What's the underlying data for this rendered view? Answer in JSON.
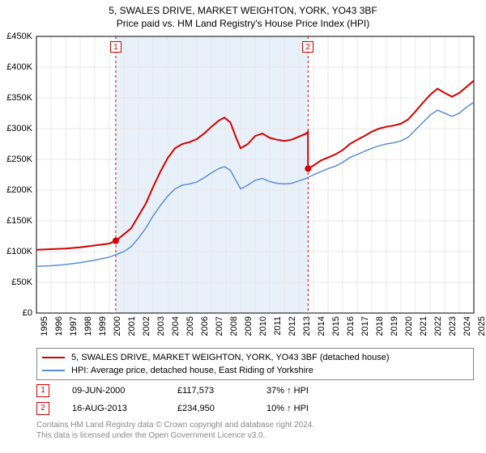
{
  "title_line1": "5, SWALES DRIVE, MARKET WEIGHTON, YORK, YO43 3BF",
  "title_line2": "Price paid vs. HM Land Registry's House Price Index (HPI)",
  "chart": {
    "type": "line",
    "x_years": [
      1995,
      1996,
      1997,
      1998,
      1999,
      2000,
      2001,
      2002,
      2003,
      2004,
      2005,
      2006,
      2007,
      2008,
      2009,
      2010,
      2011,
      2012,
      2013,
      2014,
      2015,
      2016,
      2017,
      2018,
      2019,
      2020,
      2021,
      2022,
      2023,
      2024,
      2025
    ],
    "ylim": [
      0,
      450000
    ],
    "ytick_step": 50000,
    "ytick_labels": [
      "£0",
      "£50K",
      "£100K",
      "£150K",
      "£200K",
      "£250K",
      "£300K",
      "£350K",
      "£400K",
      "£450K"
    ],
    "grid_color": "#e8e8e8",
    "background_color": "#ffffff",
    "band_color": "#e8f0fa",
    "band_xstart": 2000.44,
    "band_xend": 2013.63,
    "marker_line_color": "#d40000",
    "marker_line_dash": "3,3",
    "series": [
      {
        "name": "property",
        "label": "5, SWALES DRIVE, MARKET WEIGHTON, YORK, YO43 3BF (detached house)",
        "color": "#d40000",
        "width": 2,
        "points": [
          [
            1995.0,
            103000
          ],
          [
            1996.0,
            104000
          ],
          [
            1997.0,
            105000
          ],
          [
            1998.0,
            107000
          ],
          [
            1999.0,
            110000
          ],
          [
            2000.0,
            113000
          ],
          [
            2000.44,
            117573
          ],
          [
            2001.0,
            128000
          ],
          [
            2001.5,
            138000
          ],
          [
            2002.0,
            158000
          ],
          [
            2002.5,
            178000
          ],
          [
            2003.0,
            205000
          ],
          [
            2003.5,
            230000
          ],
          [
            2004.0,
            252000
          ],
          [
            2004.5,
            268000
          ],
          [
            2005.0,
            275000
          ],
          [
            2005.5,
            278000
          ],
          [
            2006.0,
            283000
          ],
          [
            2006.5,
            292000
          ],
          [
            2007.0,
            303000
          ],
          [
            2007.5,
            313000
          ],
          [
            2007.9,
            318000
          ],
          [
            2008.3,
            310000
          ],
          [
            2008.7,
            285000
          ],
          [
            2009.0,
            268000
          ],
          [
            2009.5,
            275000
          ],
          [
            2010.0,
            288000
          ],
          [
            2010.5,
            292000
          ],
          [
            2011.0,
            285000
          ],
          [
            2011.5,
            282000
          ],
          [
            2012.0,
            280000
          ],
          [
            2012.5,
            282000
          ],
          [
            2013.0,
            287000
          ],
          [
            2013.5,
            292000
          ],
          [
            2013.62,
            295000
          ],
          [
            2013.63,
            234950
          ],
          [
            2014.0,
            240000
          ],
          [
            2014.5,
            248000
          ],
          [
            2015.0,
            253000
          ],
          [
            2015.5,
            258000
          ],
          [
            2016.0,
            265000
          ],
          [
            2016.5,
            275000
          ],
          [
            2017.0,
            282000
          ],
          [
            2017.5,
            288000
          ],
          [
            2018.0,
            295000
          ],
          [
            2018.5,
            300000
          ],
          [
            2019.0,
            303000
          ],
          [
            2019.5,
            305000
          ],
          [
            2020.0,
            308000
          ],
          [
            2020.5,
            315000
          ],
          [
            2021.0,
            328000
          ],
          [
            2021.5,
            342000
          ],
          [
            2022.0,
            355000
          ],
          [
            2022.5,
            365000
          ],
          [
            2023.0,
            358000
          ],
          [
            2023.5,
            352000
          ],
          [
            2024.0,
            358000
          ],
          [
            2024.5,
            368000
          ],
          [
            2025.0,
            378000
          ]
        ]
      },
      {
        "name": "hpi",
        "label": "HPI: Average price, detached house, East Riding of Yorkshire",
        "color": "#5b8fd6",
        "width": 1.5,
        "points": [
          [
            1995.0,
            76000
          ],
          [
            1996.0,
            77000
          ],
          [
            1997.0,
            79000
          ],
          [
            1998.0,
            82000
          ],
          [
            1999.0,
            86000
          ],
          [
            2000.0,
            91000
          ],
          [
            2001.0,
            100000
          ],
          [
            2001.5,
            108000
          ],
          [
            2002.0,
            122000
          ],
          [
            2002.5,
            138000
          ],
          [
            2003.0,
            158000
          ],
          [
            2003.5,
            175000
          ],
          [
            2004.0,
            190000
          ],
          [
            2004.5,
            202000
          ],
          [
            2005.0,
            208000
          ],
          [
            2005.5,
            210000
          ],
          [
            2006.0,
            213000
          ],
          [
            2006.5,
            220000
          ],
          [
            2007.0,
            228000
          ],
          [
            2007.5,
            235000
          ],
          [
            2007.9,
            238000
          ],
          [
            2008.3,
            232000
          ],
          [
            2008.7,
            215000
          ],
          [
            2009.0,
            202000
          ],
          [
            2009.5,
            208000
          ],
          [
            2010.0,
            216000
          ],
          [
            2010.5,
            219000
          ],
          [
            2011.0,
            214000
          ],
          [
            2011.5,
            211000
          ],
          [
            2012.0,
            210000
          ],
          [
            2012.5,
            211000
          ],
          [
            2013.0,
            215000
          ],
          [
            2013.5,
            219000
          ],
          [
            2014.0,
            225000
          ],
          [
            2014.5,
            230000
          ],
          [
            2015.0,
            235000
          ],
          [
            2015.5,
            239000
          ],
          [
            2016.0,
            245000
          ],
          [
            2016.5,
            253000
          ],
          [
            2017.0,
            258000
          ],
          [
            2017.5,
            263000
          ],
          [
            2018.0,
            268000
          ],
          [
            2018.5,
            272000
          ],
          [
            2019.0,
            275000
          ],
          [
            2019.5,
            277000
          ],
          [
            2020.0,
            280000
          ],
          [
            2020.5,
            286000
          ],
          [
            2021.0,
            298000
          ],
          [
            2021.5,
            310000
          ],
          [
            2022.0,
            322000
          ],
          [
            2022.5,
            330000
          ],
          [
            2023.0,
            325000
          ],
          [
            2023.5,
            320000
          ],
          [
            2024.0,
            325000
          ],
          [
            2024.5,
            335000
          ],
          [
            2025.0,
            343000
          ]
        ]
      }
    ],
    "sale_markers": [
      {
        "n": "1",
        "x": 2000.44,
        "y": 117573
      },
      {
        "n": "2",
        "x": 2013.63,
        "y": 234950
      }
    ]
  },
  "legend": {
    "series1": "5, SWALES DRIVE, MARKET WEIGHTON, YORK, YO43 3BF (detached house)",
    "series2": "HPI: Average price, detached house, East Riding of Yorkshire"
  },
  "sales": [
    {
      "n": "1",
      "date": "09-JUN-2000",
      "price": "£117,573",
      "pct": "37% ↑ HPI"
    },
    {
      "n": "2",
      "date": "16-AUG-2013",
      "price": "£234,950",
      "pct": "10% ↑ HPI"
    }
  ],
  "footer_line1": "Contains HM Land Registry data © Crown copyright and database right 2024.",
  "footer_line2": "This data is licensed under the Open Government Licence v3.0."
}
